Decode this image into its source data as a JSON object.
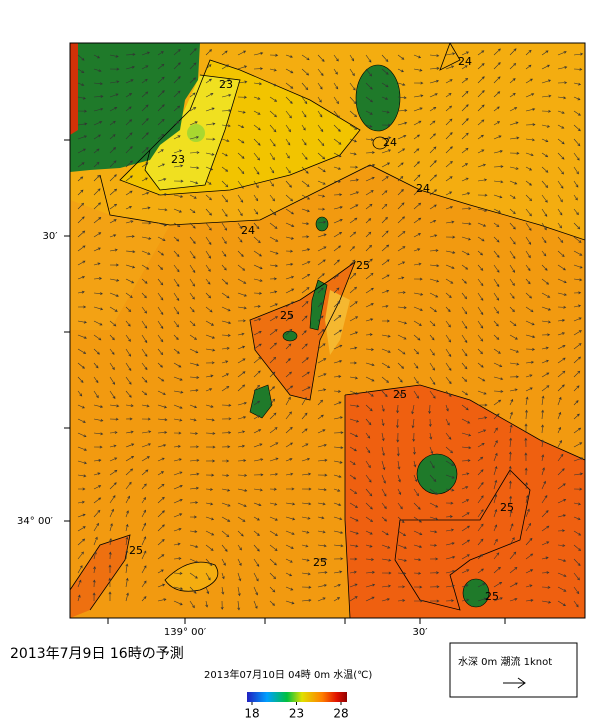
{
  "map": {
    "y_axis_labels": [
      "30′",
      "34° 00′"
    ],
    "x_axis_labels": [
      "139° 00′",
      "30′"
    ],
    "contour_labels": [
      "23",
      "23",
      "24",
      "24",
      "24",
      "24",
      "25",
      "25",
      "25",
      "25",
      "25",
      "25",
      "25"
    ],
    "caption": "2013年7月9日  16時の予測",
    "subtitle": "2013年07月10日 04時 0m 水温(℃)",
    "colorbar": {
      "range": [
        18,
        28
      ],
      "ticks": [
        18,
        23,
        28
      ]
    },
    "legend": "水深 0m 潮流 1knot"
  }
}
